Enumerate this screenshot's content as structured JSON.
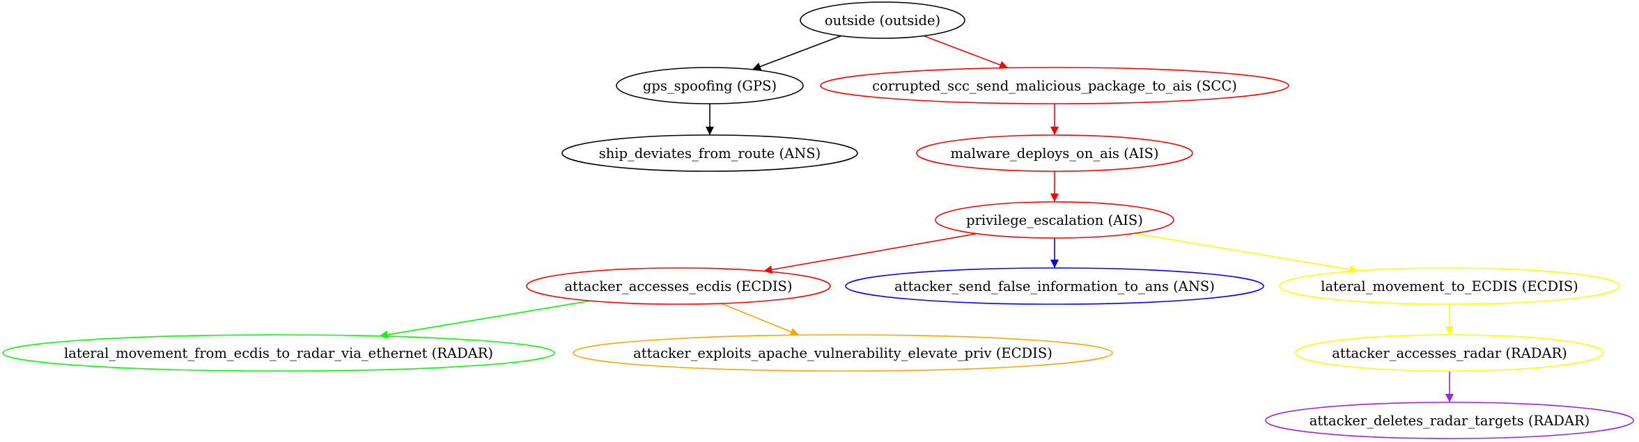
{
  "nodes": [
    {
      "id": "outside",
      "label": "outside (outside)",
      "color": "#000000"
    },
    {
      "id": "gps_spoofing",
      "label": "gps_spoofing (GPS)",
      "color": "#000000"
    },
    {
      "id": "corrupted_scc",
      "label": "corrupted_scc_send_malicious_package_to_ais (SCC)",
      "color": "#ff0000"
    },
    {
      "id": "ship_deviates",
      "label": "ship_deviates_from_route (ANS)",
      "color": "#000000"
    },
    {
      "id": "malware_ais",
      "label": "malware_deploys_on_ais (AIS)",
      "color": "#ff0000"
    },
    {
      "id": "priv_esc",
      "label": "privilege_escalation (AIS)",
      "color": "#ff0000"
    },
    {
      "id": "accesses_ecdis",
      "label": "attacker_accesses_ecdis (ECDIS)",
      "color": "#ff0000"
    },
    {
      "id": "false_info_ans",
      "label": "attacker_send_false_information_to_ans (ANS)",
      "color": "#0000ff"
    },
    {
      "id": "lateral_to_ecdis",
      "label": "lateral_movement_to_ECDIS (ECDIS)",
      "color": "#ffff00"
    },
    {
      "id": "lateral_radar_eth",
      "label": "lateral_movement_from_ecdis_to_radar_via_ethernet (RADAR)",
      "color": "#00ff00"
    },
    {
      "id": "exploits_apache",
      "label": "attacker_exploits_apache_vulnerability_elevate_priv (ECDIS)",
      "color": "#ffa500"
    },
    {
      "id": "accesses_radar",
      "label": "attacker_accesses_radar (RADAR)",
      "color": "#ffff00"
    },
    {
      "id": "deletes_targets",
      "label": "attacker_deletes_radar_targets (RADAR)",
      "color": "#a020f0"
    }
  ],
  "edges": [
    {
      "from": "outside",
      "to": "gps_spoofing",
      "color": "#000000"
    },
    {
      "from": "outside",
      "to": "corrupted_scc",
      "color": "#ff0000"
    },
    {
      "from": "gps_spoofing",
      "to": "ship_deviates",
      "color": "#000000"
    },
    {
      "from": "corrupted_scc",
      "to": "malware_ais",
      "color": "#ff0000"
    },
    {
      "from": "malware_ais",
      "to": "priv_esc",
      "color": "#ff0000"
    },
    {
      "from": "priv_esc",
      "to": "accesses_ecdis",
      "color": "#ff0000"
    },
    {
      "from": "priv_esc",
      "to": "false_info_ans",
      "color": "#0000ff"
    },
    {
      "from": "priv_esc",
      "to": "lateral_to_ecdis",
      "color": "#ffff00"
    },
    {
      "from": "accesses_ecdis",
      "to": "lateral_radar_eth",
      "color": "#00ff00"
    },
    {
      "from": "accesses_ecdis",
      "to": "exploits_apache",
      "color": "#ffa500"
    },
    {
      "from": "lateral_to_ecdis",
      "to": "accesses_radar",
      "color": "#ffff00"
    },
    {
      "from": "accesses_radar",
      "to": "deletes_targets",
      "color": "#a020f0"
    }
  ]
}
